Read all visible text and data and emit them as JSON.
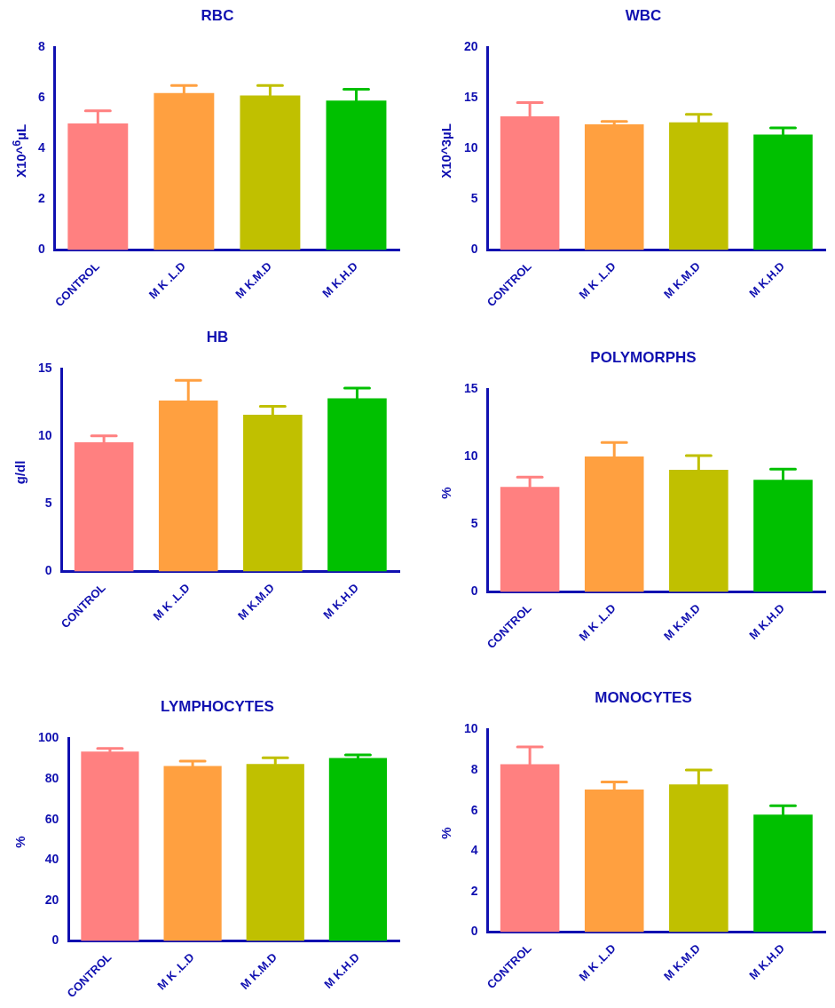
{
  "chart_data": [
    {
      "type": "bar",
      "title": "RBC",
      "ylabel": "X10^$^{6}$µL",
      "categories": [
        "CONTROL",
        "M K .L.D",
        "M K.M.D",
        "M K.H.D"
      ],
      "values": [
        5.0,
        6.2,
        6.1,
        5.9
      ],
      "errors": [
        0.5,
        0.3,
        0.4,
        0.45
      ],
      "colors": [
        "#ff8080",
        "#ffa040",
        "#c0c000",
        "#00c000"
      ],
      "ylim": [
        0,
        8
      ],
      "yticks": [
        0,
        2,
        4,
        6,
        8
      ]
    },
    {
      "type": "bar",
      "title": "WBC",
      "ylabel": "X10^3µL",
      "categories": [
        "CONTROL",
        "M K .L.D",
        "M K.M.D",
        "M K.H.D"
      ],
      "values": [
        13.2,
        12.4,
        12.6,
        11.4
      ],
      "errors": [
        1.35,
        0.3,
        0.8,
        0.65
      ],
      "colors": [
        "#ff8080",
        "#ffa040",
        "#c0c000",
        "#00c000"
      ],
      "ylim": [
        0,
        20
      ],
      "yticks": [
        0,
        5,
        10,
        15,
        20
      ]
    },
    {
      "type": "bar",
      "title": "HB",
      "ylabel": "g/dl",
      "categories": [
        "CONTROL",
        "M K .L.D",
        "M K.M.D",
        "M K.H.D"
      ],
      "values": [
        9.57,
        12.66,
        11.6,
        12.83
      ],
      "errors": [
        0.47,
        1.5,
        0.64,
        0.75
      ],
      "colors": [
        "#ff8080",
        "#ffa040",
        "#c0c000",
        "#00c000"
      ],
      "ylim": [
        0,
        15
      ],
      "yticks": [
        0,
        5,
        10,
        15
      ]
    },
    {
      "type": "bar",
      "title": "POLYMORPHS",
      "ylabel": "%",
      "categories": [
        "CONTROL",
        "M K .L.D",
        "M K.M.D",
        "M K.H.D"
      ],
      "values": [
        7.78,
        10.03,
        9.05,
        8.3
      ],
      "errors": [
        0.72,
        1.04,
        1.04,
        0.8
      ],
      "colors": [
        "#ff8080",
        "#ffa040",
        "#c0c000",
        "#00c000"
      ],
      "ylim": [
        0,
        15
      ],
      "yticks": [
        0,
        5,
        10,
        15
      ]
    },
    {
      "type": "bar",
      "title": "LYMPHOCYTES",
      "ylabel": "%",
      "categories": [
        "CONTROL",
        "M K .L.D",
        "M K.M.D",
        "M K.H.D"
      ],
      "values": [
        93.5,
        86.4,
        87.4,
        90.3
      ],
      "errors": [
        1.5,
        2.4,
        3.0,
        1.5
      ],
      "colors": [
        "#ff8080",
        "#ffa040",
        "#c0c000",
        "#00c000"
      ],
      "ylim": [
        0,
        100
      ],
      "yticks": [
        0,
        20,
        40,
        60,
        80,
        100
      ]
    },
    {
      "type": "bar",
      "title": "MONOCYTES",
      "ylabel": "%",
      "categories": [
        "CONTROL",
        "M K .L.D",
        "M K.M.D",
        "M K.H.D"
      ],
      "values": [
        8.29,
        7.04,
        7.29,
        5.8
      ],
      "errors": [
        0.85,
        0.37,
        0.71,
        0.44
      ],
      "colors": [
        "#ff8080",
        "#ffa040",
        "#c0c000",
        "#00c000"
      ],
      "ylim": [
        0,
        10
      ],
      "yticks": [
        0,
        2,
        4,
        6,
        8,
        10
      ]
    }
  ]
}
